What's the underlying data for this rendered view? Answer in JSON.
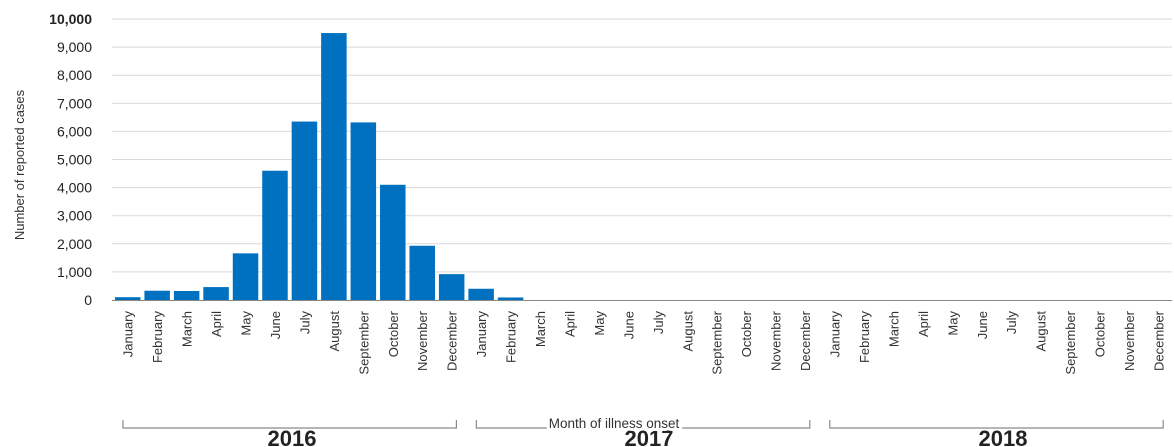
{
  "chart_data": {
    "type": "bar",
    "ylabel": "Number of reported cases",
    "xlabel": "Month of illness onset",
    "ylim": [
      0,
      10000
    ],
    "yticks": [
      "0",
      "1,000",
      "2,000",
      "3,000",
      "4,000",
      "5,000",
      "6,000",
      "7,000",
      "8,000",
      "9,000",
      "10,000"
    ],
    "grid": true,
    "bar_color": "#0070C0",
    "years": [
      "2016",
      "2017",
      "2018"
    ],
    "months": [
      "January",
      "February",
      "March",
      "April",
      "May",
      "June",
      "July",
      "August",
      "September",
      "October",
      "November",
      "December"
    ],
    "values": [
      [
        100,
        330,
        320,
        460,
        1660,
        4600,
        6350,
        9500,
        6320,
        4100,
        1930,
        920
      ],
      [
        400,
        90,
        0,
        0,
        0,
        0,
        0,
        0,
        0,
        0,
        0,
        0
      ],
      [
        0,
        0,
        0,
        0,
        0,
        0,
        0,
        0,
        0,
        0,
        0,
        0
      ]
    ]
  }
}
